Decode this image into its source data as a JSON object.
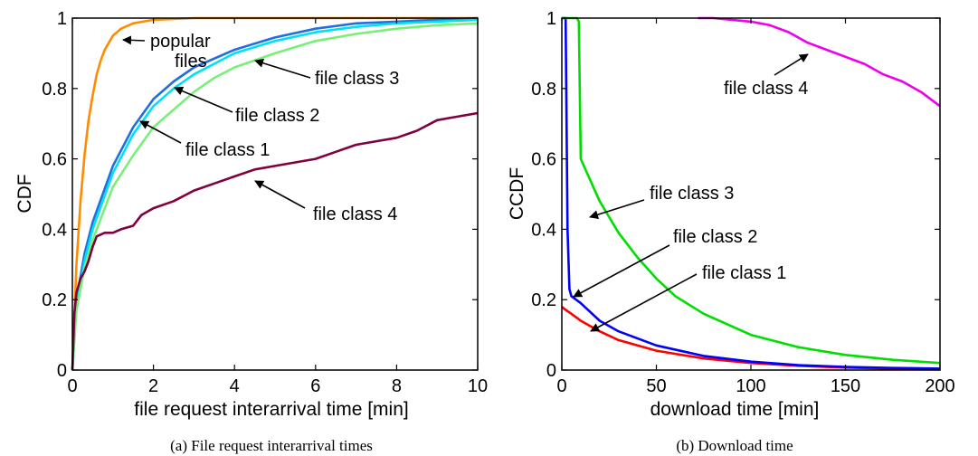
{
  "chart_data": [
    {
      "type": "line",
      "caption": "(a)  File request interarrival times",
      "xlabel": "file request interarrival time [min]",
      "ylabel": "CDF",
      "xlim": [
        0,
        10
      ],
      "ylim": [
        0,
        1
      ],
      "xticks": [
        "0",
        "2",
        "4",
        "6",
        "8",
        "10"
      ],
      "yticks": [
        "0",
        "0.2",
        "0.4",
        "0.6",
        "0.8",
        "1"
      ],
      "grid": false,
      "legend": "none (curves labeled with arrows)",
      "series": [
        {
          "name": "popular files",
          "color": "#ff8c00",
          "x": [
            0,
            0.1,
            0.2,
            0.3,
            0.4,
            0.5,
            0.6,
            0.7,
            0.8,
            0.9,
            1.0,
            1.2,
            1.5,
            2.0,
            3.0,
            4.0,
            10.0
          ],
          "y": [
            0,
            0.3,
            0.48,
            0.61,
            0.71,
            0.78,
            0.84,
            0.88,
            0.91,
            0.93,
            0.95,
            0.97,
            0.985,
            0.995,
            1.0,
            1.0,
            1.0
          ]
        },
        {
          "name": "file class 1",
          "color": "#1f6fe0",
          "x": [
            0,
            0.1,
            0.3,
            0.5,
            1.0,
            1.5,
            2.0,
            2.5,
            3.0,
            4.0,
            5.0,
            6.0,
            7.0,
            8.0,
            10.0
          ],
          "y": [
            0,
            0.2,
            0.33,
            0.42,
            0.58,
            0.69,
            0.77,
            0.82,
            0.86,
            0.91,
            0.945,
            0.97,
            0.985,
            0.99,
            1.0
          ]
        },
        {
          "name": "file class 2",
          "color": "#00e0f0",
          "x": [
            0,
            0.1,
            0.3,
            0.5,
            1.0,
            1.5,
            2.0,
            2.5,
            3.0,
            4.0,
            5.0,
            6.0,
            7.0,
            8.0,
            10.0
          ],
          "y": [
            0,
            0.18,
            0.31,
            0.4,
            0.56,
            0.67,
            0.75,
            0.8,
            0.84,
            0.9,
            0.935,
            0.96,
            0.975,
            0.985,
            0.995
          ]
        },
        {
          "name": "file class 3",
          "color": "#78f078",
          "x": [
            0,
            0.1,
            0.3,
            0.5,
            1.0,
            1.5,
            2.0,
            2.5,
            3.0,
            3.5,
            4.0,
            5.0,
            6.0,
            7.0,
            8.0,
            9.0,
            10.0
          ],
          "y": [
            0,
            0.17,
            0.29,
            0.37,
            0.52,
            0.61,
            0.69,
            0.74,
            0.79,
            0.83,
            0.86,
            0.9,
            0.935,
            0.955,
            0.97,
            0.98,
            0.985
          ]
        },
        {
          "name": "file class 4",
          "color": "#800040",
          "x": [
            0,
            0.05,
            0.1,
            0.2,
            0.3,
            0.4,
            0.5,
            0.6,
            0.8,
            1.0,
            1.2,
            1.5,
            1.7,
            2.0,
            2.5,
            3.0,
            3.5,
            4.0,
            4.5,
            5.0,
            5.5,
            6.0,
            6.5,
            7.0,
            7.5,
            8.0,
            8.5,
            9.0,
            9.5,
            10.0
          ],
          "y": [
            0,
            0.16,
            0.22,
            0.26,
            0.28,
            0.31,
            0.35,
            0.38,
            0.39,
            0.39,
            0.4,
            0.41,
            0.44,
            0.46,
            0.48,
            0.51,
            0.53,
            0.55,
            0.57,
            0.58,
            0.59,
            0.6,
            0.62,
            0.64,
            0.65,
            0.66,
            0.68,
            0.71,
            0.72,
            0.73
          ]
        }
      ],
      "annotations": [
        {
          "label": "popular",
          "label2": "files"
        },
        {
          "label": "file class 3"
        },
        {
          "label": "file class 2"
        },
        {
          "label": "file class 1"
        },
        {
          "label": "file class 4"
        }
      ]
    },
    {
      "type": "line",
      "caption": "(b)  Download time",
      "xlabel": "download time [min]",
      "ylabel": "CCDF",
      "xlim": [
        0,
        200
      ],
      "ylim": [
        0,
        1
      ],
      "xticks": [
        "0",
        "50",
        "100",
        "150",
        "200"
      ],
      "yticks": [
        "0",
        "0.2",
        "0.4",
        "0.6",
        "0.8",
        "1"
      ],
      "grid": false,
      "legend": "none (curves labeled with arrows)",
      "series": [
        {
          "name": "file class 1",
          "color": "#ff0000",
          "x": [
            0,
            1,
            5,
            10,
            20,
            30,
            50,
            75,
            100,
            125,
            150,
            175,
            200
          ],
          "y": [
            0.18,
            0.175,
            0.16,
            0.14,
            0.11,
            0.085,
            0.055,
            0.033,
            0.02,
            0.012,
            0.007,
            0.004,
            0.003
          ]
        },
        {
          "name": "file class 2",
          "color": "#0000ff",
          "x": [
            0,
            1,
            2,
            3,
            4,
            5,
            10,
            15,
            20,
            30,
            50,
            75,
            100,
            125,
            150,
            175,
            200
          ],
          "y": [
            1.0,
            1.0,
            1.0,
            0.4,
            0.23,
            0.21,
            0.19,
            0.165,
            0.14,
            0.11,
            0.07,
            0.04,
            0.024,
            0.014,
            0.009,
            0.006,
            0.004
          ]
        },
        {
          "name": "file class 3",
          "color": "#00dd00",
          "x": [
            0,
            8,
            9,
            10,
            20,
            30,
            40,
            50,
            60,
            75,
            100,
            125,
            150,
            175,
            200
          ],
          "y": [
            1.0,
            1.0,
            0.99,
            0.6,
            0.48,
            0.39,
            0.32,
            0.26,
            0.21,
            0.16,
            0.1,
            0.065,
            0.043,
            0.029,
            0.02
          ]
        },
        {
          "name": "file class 4",
          "color": "#ee00ee",
          "x": [
            72,
            80,
            90,
            100,
            110,
            120,
            130,
            140,
            150,
            160,
            170,
            180,
            190,
            200
          ],
          "y": [
            1.0,
            1.0,
            0.995,
            0.99,
            0.98,
            0.96,
            0.93,
            0.91,
            0.89,
            0.87,
            0.84,
            0.82,
            0.79,
            0.75
          ]
        }
      ],
      "annotations": [
        {
          "label": "file class 4"
        },
        {
          "label": "file class 3"
        },
        {
          "label": "file class 2"
        },
        {
          "label": "file class 1"
        }
      ]
    }
  ]
}
